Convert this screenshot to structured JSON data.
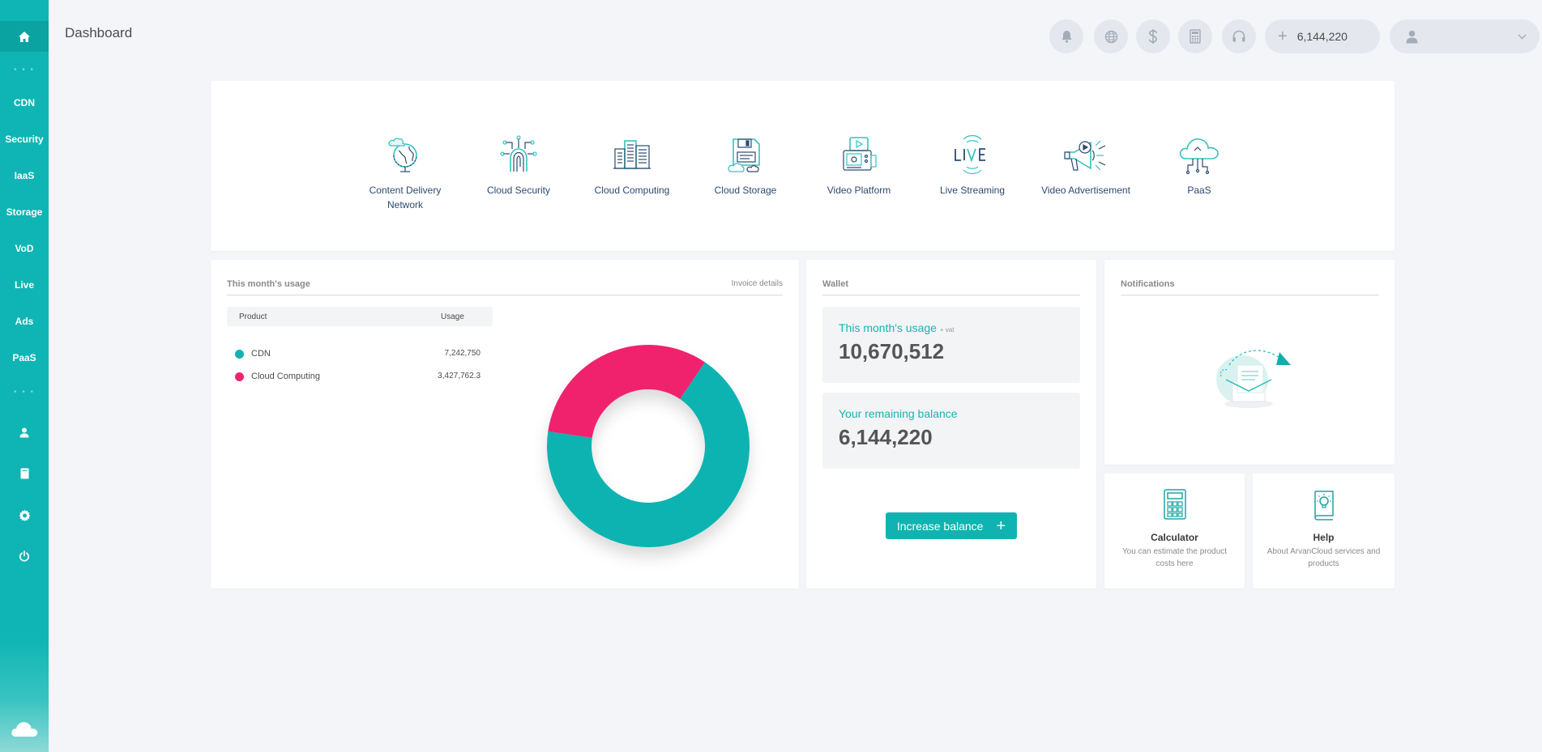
{
  "header": {
    "title": "Dashboard",
    "balance": "6,144,220",
    "balance_plus": "+",
    "user_name": ""
  },
  "sidebar": {
    "items": [
      {
        "label": "CDN"
      },
      {
        "label": "Security"
      },
      {
        "label": "IaaS"
      },
      {
        "label": "Storage"
      },
      {
        "label": "VoD"
      },
      {
        "label": "Live"
      },
      {
        "label": "Ads"
      },
      {
        "label": "PaaS"
      }
    ],
    "dots": "• • •"
  },
  "products": [
    {
      "label": "Content Delivery Network",
      "icon": "globe-cloud-icon"
    },
    {
      "label": "Cloud Security",
      "icon": "fingerprint-icon"
    },
    {
      "label": "Cloud Computing",
      "icon": "servers-icon"
    },
    {
      "label": "Cloud Storage",
      "icon": "disk-cloud-icon"
    },
    {
      "label": "Video Platform",
      "icon": "video-device-icon"
    },
    {
      "label": "Live Streaming",
      "icon": "live-icon"
    },
    {
      "label": "Video Advertisement",
      "icon": "megaphone-icon"
    },
    {
      "label": "PaaS",
      "icon": "cloud-circuit-icon"
    }
  ],
  "usage": {
    "title": "This month's usage",
    "invoice_link": "Invoice details",
    "columns": [
      "Product",
      "Usage"
    ],
    "rows": [
      {
        "name": "CDN",
        "value": "7,242,750",
        "color": "#10b3b1"
      },
      {
        "name": "Cloud Computing",
        "value": "3,427,762.3",
        "color": "#f0236e"
      }
    ]
  },
  "chart_data": {
    "type": "pie",
    "categories": [
      "CDN",
      "Cloud Computing"
    ],
    "values": [
      7242750,
      3427762.3
    ],
    "colors": [
      "#10b3b1",
      "#f0236e"
    ]
  },
  "wallet": {
    "title": "Wallet",
    "usage_label": "This month's usage",
    "usage_suffix": "+ vat",
    "usage_value": "10,670,512",
    "remaining_label": "Your remaining balance",
    "remaining_value": "6,144,220",
    "increase_button": "Increase balance",
    "increase_plus": "+"
  },
  "notifications": {
    "title": "Notifications"
  },
  "tools": [
    {
      "title": "Calculator",
      "desc": "You can estimate the product costs here"
    },
    {
      "title": "Help",
      "desc": "About ArvanCloud services and products"
    }
  ],
  "colors": {
    "accent": "#10b3b1",
    "pink": "#f0236e",
    "icon_teal": "#33c3c0",
    "icon_navy": "#2d4a6e"
  }
}
